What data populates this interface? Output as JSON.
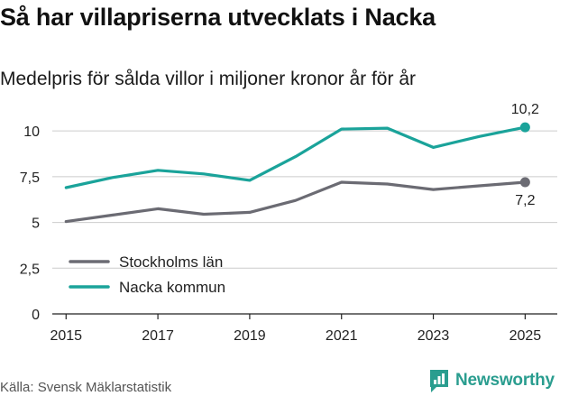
{
  "header": {
    "title": "Så har villapriserna utvecklats i Nacka",
    "subtitle": "Medelpris för sålda villor i miljoner kronor år för år"
  },
  "footer": {
    "source": "Källa: Svensk Mäklarstatistik",
    "brand": "Newsworthy"
  },
  "colors": {
    "stockholm": "#6b6b73",
    "nacka": "#1aa39a",
    "grid": "#cccccc",
    "axis": "#222222",
    "brand": "#2a9d8f"
  },
  "chart_data": {
    "type": "line",
    "title": "Så har villapriserna utvecklats i Nacka",
    "subtitle": "Medelpris för sålda villor i miljoner kronor år för år",
    "xlabel": "",
    "ylabel": "",
    "x": [
      2015,
      2016,
      2017,
      2018,
      2019,
      2020,
      2021,
      2022,
      2023,
      2024,
      2025
    ],
    "xticks": [
      2015,
      2017,
      2019,
      2021,
      2023,
      2025
    ],
    "xtick_labels": [
      "2015",
      "2017",
      "2019",
      "2021",
      "2023",
      "2025"
    ],
    "ylim": [
      0,
      10.6
    ],
    "yticks": [
      0,
      2.5,
      5,
      7.5,
      10
    ],
    "ytick_labels": [
      "0",
      "2,5",
      "5",
      "7,5",
      "10"
    ],
    "grid": true,
    "legend_position": "bottom-left",
    "series": [
      {
        "name": "Stockholms län",
        "color": "#6b6b73",
        "values": [
          5.05,
          5.4,
          5.75,
          5.45,
          5.55,
          6.2,
          7.2,
          7.1,
          6.8,
          7.0,
          7.2
        ],
        "end_label": "7,2"
      },
      {
        "name": "Nacka kommun",
        "color": "#1aa39a",
        "values": [
          6.9,
          7.45,
          7.85,
          7.65,
          7.3,
          8.6,
          10.1,
          10.15,
          9.1,
          9.7,
          10.2
        ],
        "end_label": "10,2"
      }
    ]
  }
}
